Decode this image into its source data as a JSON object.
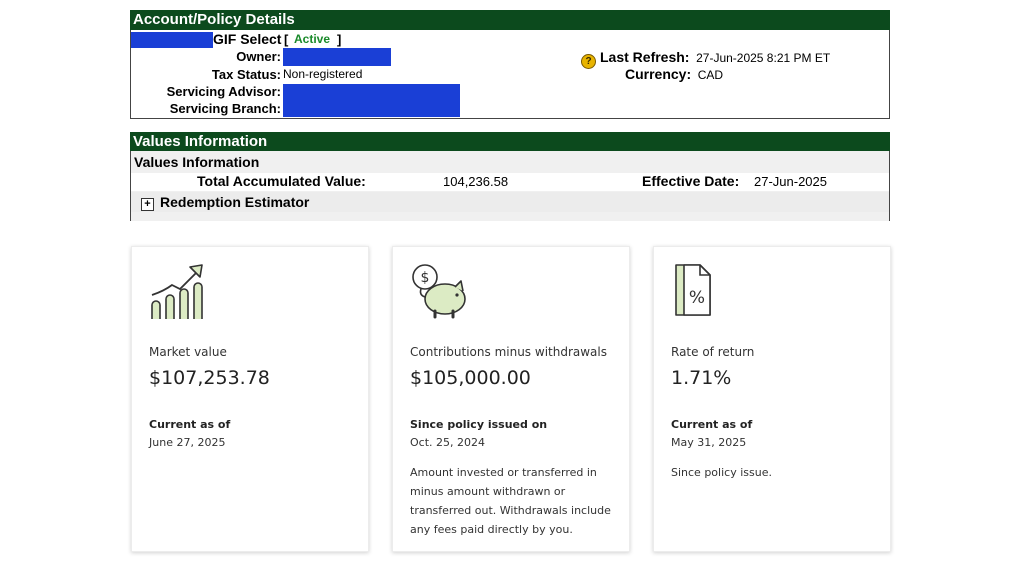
{
  "account": {
    "header": "Account/Policy Details",
    "product": "GIF Select",
    "status_open": "[",
    "status": "Active",
    "status_close": "]",
    "owner_label": "Owner:",
    "tax_status_label": "Tax Status:",
    "tax_status_value": "Non-registered",
    "advisor_label": "Servicing Advisor:",
    "branch_label": "Servicing Branch:",
    "last_refresh_label": "Last Refresh:",
    "last_refresh_value": "27-Jun-2025 8:21 PM ET",
    "currency_label": "Currency:",
    "currency_value": "CAD",
    "help_icon": "question-circle-icon",
    "redaction_color": "#1a3fd6"
  },
  "values": {
    "header": "Values Information",
    "subheader": "Values Information",
    "total_label": "Total Accumulated Value:",
    "total_value": "104,236.58",
    "effective_label": "Effective Date:",
    "effective_value": "27-Jun-2025",
    "redemption_label": "Redemption Estimator",
    "expand_icon": "plus-square-icon"
  },
  "cards": [
    {
      "icon": "growth-chart-icon",
      "title": "Market value",
      "value": "$107,253.78",
      "sub": "Current as of",
      "date": "June 27, 2025",
      "note": ""
    },
    {
      "icon": "piggy-bank-icon",
      "title": "Contributions minus withdrawals",
      "value": "$105,000.00",
      "sub": "Since policy issued on",
      "date": "Oct. 25, 2024",
      "note": "Amount invested or transferred in minus amount withdrawn or transferred out. Withdrawals include any fees paid directly by you."
    },
    {
      "icon": "percent-document-icon",
      "title": "Rate of return",
      "value": "1.71%",
      "sub": "Current as of",
      "date": "May 31, 2025",
      "note": "Since policy issue."
    }
  ],
  "colors": {
    "header_bg": "#0c4a1d",
    "active": "#1a8a2a",
    "icon_fill": "#dcebc4"
  }
}
